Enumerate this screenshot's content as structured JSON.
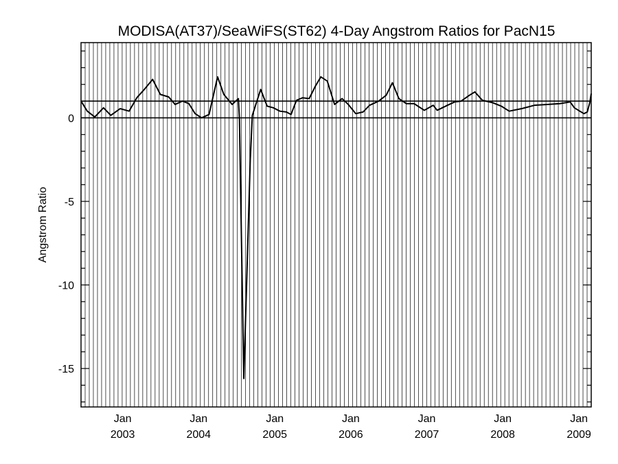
{
  "chart_data": {
    "type": "line",
    "title": "MODISA(AT37)/SeaWiFS(ST62) 4-Day Angstrom Ratios for PacN15",
    "xlabel": "",
    "ylabel": "Angstrom Ratio",
    "xlim": [
      "2002-06-15",
      "2009-03-01"
    ],
    "ylim": [
      -17.3,
      4.5
    ],
    "y_ticks": [
      {
        "value": 0,
        "label": "0"
      },
      {
        "value": -5,
        "label": "-5"
      },
      {
        "value": -10,
        "label": "-10"
      },
      {
        "value": -15,
        "label": "-15"
      }
    ],
    "x_ticks": [
      {
        "date": "2003-01-01",
        "month": "Jan",
        "year": "2003"
      },
      {
        "date": "2004-01-01",
        "month": "Jan",
        "year": "2004"
      },
      {
        "date": "2005-01-01",
        "month": "Jan",
        "year": "2005"
      },
      {
        "date": "2006-01-01",
        "month": "Jan",
        "year": "2006"
      },
      {
        "date": "2007-01-01",
        "month": "Jan",
        "year": "2007"
      },
      {
        "date": "2008-01-01",
        "month": "Jan",
        "year": "2008"
      },
      {
        "date": "2009-01-01",
        "month": "Jan",
        "year": "2009"
      }
    ],
    "vertical_grid": "dense vertical lines at 4-day sample dates",
    "reference_lines": [
      0,
      1
    ],
    "grid": false,
    "series": [
      {
        "color": "#000000",
        "points": [
          [
            "2002-06-15",
            1.0
          ],
          [
            "2002-07-15",
            0.4
          ],
          [
            "2002-08-20",
            0.05
          ],
          [
            "2002-10-01",
            0.6
          ],
          [
            "2002-11-05",
            0.15
          ],
          [
            "2002-12-20",
            0.55
          ],
          [
            "2003-02-01",
            0.4
          ],
          [
            "2003-03-10",
            1.2
          ],
          [
            "2003-04-15",
            1.7
          ],
          [
            "2003-05-25",
            2.3
          ],
          [
            "2003-07-01",
            1.4
          ],
          [
            "2003-08-10",
            1.25
          ],
          [
            "2003-09-10",
            0.8
          ],
          [
            "2003-10-15",
            1.0
          ],
          [
            "2003-11-15",
            0.85
          ],
          [
            "2003-12-15",
            0.25
          ],
          [
            "2004-01-15",
            0.0
          ],
          [
            "2004-02-20",
            0.2
          ],
          [
            "2004-04-01",
            2.45
          ],
          [
            "2004-05-01",
            1.4
          ],
          [
            "2004-06-10",
            0.8
          ],
          [
            "2004-07-10",
            1.15
          ],
          [
            "2004-07-15",
            -0.1
          ],
          [
            "2004-08-05",
            -15.6
          ],
          [
            "2004-09-05",
            -2.5
          ],
          [
            "2004-09-15",
            0.15
          ],
          [
            "2004-10-25",
            1.7
          ],
          [
            "2004-11-25",
            0.7
          ],
          [
            "2004-12-25",
            0.6
          ],
          [
            "2005-01-25",
            0.4
          ],
          [
            "2005-02-25",
            0.35
          ],
          [
            "2005-03-20",
            0.2
          ],
          [
            "2005-04-15",
            1.05
          ],
          [
            "2005-05-15",
            1.2
          ],
          [
            "2005-06-15",
            1.15
          ],
          [
            "2005-07-15",
            1.9
          ],
          [
            "2005-08-10",
            2.45
          ],
          [
            "2005-09-10",
            2.2
          ],
          [
            "2005-10-15",
            0.8
          ],
          [
            "2005-11-20",
            1.15
          ],
          [
            "2005-12-20",
            0.8
          ],
          [
            "2006-01-25",
            0.25
          ],
          [
            "2006-03-01",
            0.35
          ],
          [
            "2006-04-01",
            0.75
          ],
          [
            "2006-05-15",
            1.0
          ],
          [
            "2006-06-20",
            1.35
          ],
          [
            "2006-07-20",
            2.1
          ],
          [
            "2006-08-20",
            1.15
          ],
          [
            "2006-09-25",
            0.85
          ],
          [
            "2006-11-01",
            0.85
          ],
          [
            "2006-12-20",
            0.45
          ],
          [
            "2007-02-01",
            0.75
          ],
          [
            "2007-02-20",
            0.45
          ],
          [
            "2007-04-10",
            0.75
          ],
          [
            "2007-05-15",
            0.95
          ],
          [
            "2007-06-15",
            1.0
          ],
          [
            "2007-07-25",
            1.35
          ],
          [
            "2007-08-20",
            1.55
          ],
          [
            "2007-09-25",
            1.05
          ],
          [
            "2007-11-15",
            0.9
          ],
          [
            "2007-12-25",
            0.7
          ],
          [
            "2008-02-01",
            0.4
          ],
          [
            "2008-04-01",
            0.55
          ],
          [
            "2008-06-01",
            0.75
          ],
          [
            "2008-08-01",
            0.8
          ],
          [
            "2008-10-01",
            0.85
          ],
          [
            "2008-11-20",
            0.95
          ],
          [
            "2008-12-10",
            0.6
          ],
          [
            "2009-01-05",
            0.4
          ],
          [
            "2009-01-25",
            0.25
          ],
          [
            "2009-02-10",
            0.35
          ],
          [
            "2009-02-22",
            0.9
          ],
          [
            "2009-03-01",
            1.45
          ]
        ]
      }
    ]
  }
}
